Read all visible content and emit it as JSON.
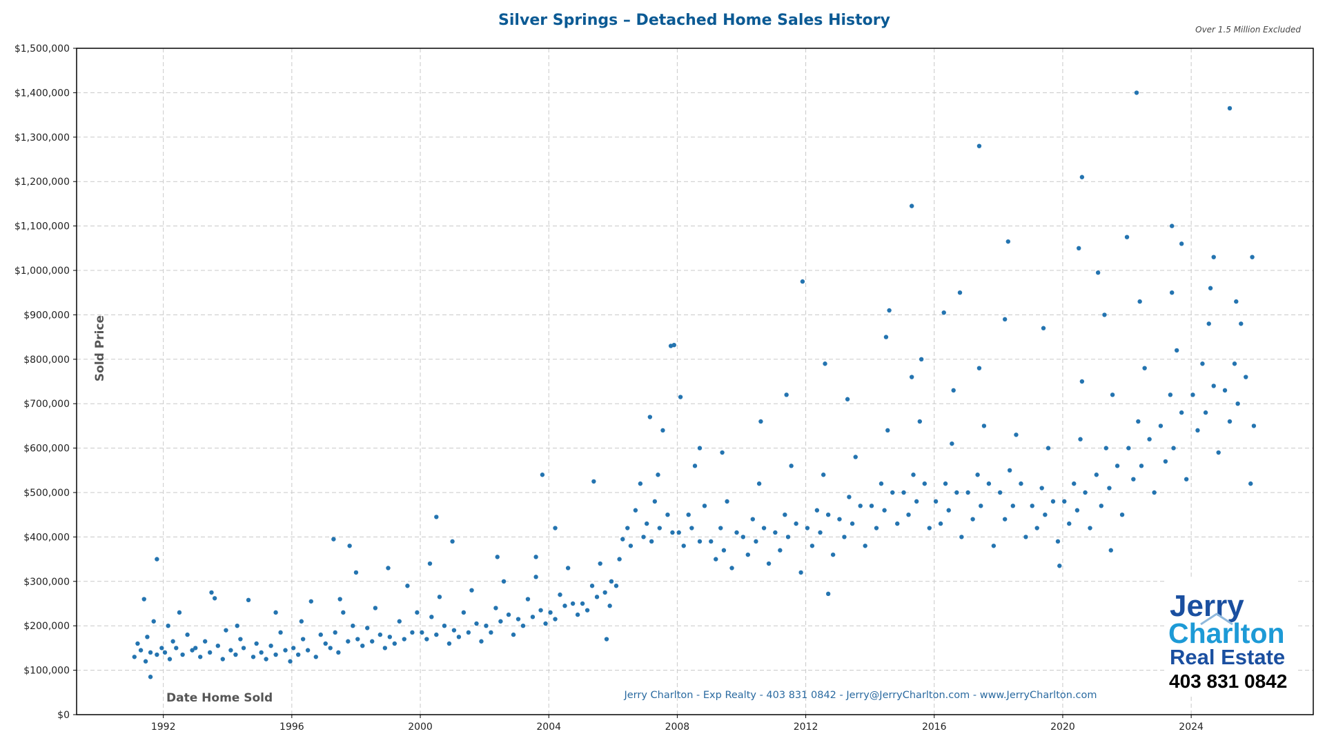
{
  "chart_data": {
    "type": "scatter",
    "title": "Silver Springs – Detached Home Sales History",
    "subtitle": "Over 1.5 Million Excluded",
    "xlabel": "Date Home Sold",
    "ylabel": "Sold Price",
    "footer": "Jerry Charlton - Exp Realty - 403 831 0842 - Jerry@JerryCharlton.com - www.JerryCharlton.com",
    "xlim": [
      1989.3,
      2027.8
    ],
    "ylim": [
      0,
      1500000
    ],
    "x_ticks": [
      "1992",
      "1996",
      "2000",
      "2004",
      "2008",
      "2012",
      "2016",
      "2020",
      "2024"
    ],
    "y_ticks": [
      "$0",
      "$100,000",
      "$200,000",
      "$300,000",
      "$400,000",
      "$500,000",
      "$600,000",
      "$700,000",
      "$800,000",
      "$900,000",
      "$1,000,000",
      "$1,100,000",
      "$1,200,000",
      "$1,300,000",
      "$1,400,000",
      "$1,500,000"
    ],
    "grid": true,
    "point_color": "#2474b0",
    "title_color": "#0b5a94",
    "points": [
      [
        1991.1,
        130000
      ],
      [
        1991.2,
        160000
      ],
      [
        1991.3,
        145000
      ],
      [
        1991.45,
        120000
      ],
      [
        1991.5,
        175000
      ],
      [
        1991.6,
        140000
      ],
      [
        1991.7,
        210000
      ],
      [
        1991.8,
        135000
      ],
      [
        1991.95,
        150000
      ],
      [
        1991.4,
        260000
      ],
      [
        1992.05,
        140000
      ],
      [
        1992.2,
        125000
      ],
      [
        1992.3,
        165000
      ],
      [
        1992.4,
        150000
      ],
      [
        1992.5,
        230000
      ],
      [
        1992.6,
        135000
      ],
      [
        1992.75,
        180000
      ],
      [
        1992.9,
        145000
      ],
      [
        1992.15,
        200000
      ],
      [
        1993.0,
        150000
      ],
      [
        1993.15,
        130000
      ],
      [
        1993.3,
        165000
      ],
      [
        1993.45,
        140000
      ],
      [
        1993.6,
        262000
      ],
      [
        1993.7,
        155000
      ],
      [
        1993.85,
        125000
      ],
      [
        1993.95,
        190000
      ],
      [
        1993.5,
        275000
      ],
      [
        1994.1,
        145000
      ],
      [
        1994.25,
        135000
      ],
      [
        1994.4,
        170000
      ],
      [
        1994.5,
        150000
      ],
      [
        1994.65,
        258000
      ],
      [
        1994.8,
        130000
      ],
      [
        1994.9,
        160000
      ],
      [
        1994.3,
        200000
      ],
      [
        1995.05,
        140000
      ],
      [
        1995.2,
        125000
      ],
      [
        1995.35,
        155000
      ],
      [
        1995.5,
        135000
      ],
      [
        1995.65,
        185000
      ],
      [
        1995.8,
        145000
      ],
      [
        1995.95,
        120000
      ],
      [
        1995.5,
        230000
      ],
      [
        1996.05,
        150000
      ],
      [
        1996.2,
        135000
      ],
      [
        1996.35,
        170000
      ],
      [
        1996.5,
        145000
      ],
      [
        1996.6,
        255000
      ],
      [
        1996.75,
        130000
      ],
      [
        1996.9,
        180000
      ],
      [
        1996.3,
        210000
      ],
      [
        1997.05,
        160000
      ],
      [
        1997.2,
        150000
      ],
      [
        1997.35,
        185000
      ],
      [
        1997.45,
        140000
      ],
      [
        1997.6,
        230000
      ],
      [
        1997.75,
        165000
      ],
      [
        1997.9,
        200000
      ],
      [
        1997.5,
        260000
      ],
      [
        1998.05,
        170000
      ],
      [
        1998.2,
        155000
      ],
      [
        1998.35,
        195000
      ],
      [
        1998.5,
        165000
      ],
      [
        1998.6,
        240000
      ],
      [
        1998.75,
        180000
      ],
      [
        1998.9,
        150000
      ],
      [
        1998.0,
        320000
      ],
      [
        1999.05,
        175000
      ],
      [
        1999.2,
        160000
      ],
      [
        1999.35,
        210000
      ],
      [
        1999.5,
        170000
      ],
      [
        1999.6,
        290000
      ],
      [
        1999.75,
        185000
      ],
      [
        1999.9,
        230000
      ],
      [
        1999.0,
        330000
      ],
      [
        2000.05,
        185000
      ],
      [
        2000.2,
        170000
      ],
      [
        2000.35,
        220000
      ],
      [
        2000.5,
        180000
      ],
      [
        2000.6,
        265000
      ],
      [
        2000.75,
        200000
      ],
      [
        2000.9,
        160000
      ],
      [
        2000.3,
        340000
      ],
      [
        2001.05,
        190000
      ],
      [
        2001.2,
        175000
      ],
      [
        2001.35,
        230000
      ],
      [
        2001.5,
        185000
      ],
      [
        2001.6,
        280000
      ],
      [
        2001.75,
        205000
      ],
      [
        2001.9,
        165000
      ],
      [
        2001.0,
        390000
      ],
      [
        2002.05,
        200000
      ],
      [
        2002.2,
        185000
      ],
      [
        2002.35,
        240000
      ],
      [
        2002.5,
        210000
      ],
      [
        2002.6,
        300000
      ],
      [
        2002.75,
        225000
      ],
      [
        2002.9,
        180000
      ],
      [
        2002.4,
        355000
      ],
      [
        2003.05,
        215000
      ],
      [
        2003.2,
        200000
      ],
      [
        2003.35,
        260000
      ],
      [
        2003.5,
        220000
      ],
      [
        2003.6,
        310000
      ],
      [
        2003.75,
        235000
      ],
      [
        2003.9,
        205000
      ],
      [
        2003.6,
        355000
      ],
      [
        2004.05,
        230000
      ],
      [
        2004.2,
        215000
      ],
      [
        2004.35,
        270000
      ],
      [
        2004.5,
        245000
      ],
      [
        2004.6,
        330000
      ],
      [
        2004.75,
        250000
      ],
      [
        2004.9,
        225000
      ],
      [
        2004.2,
        420000
      ],
      [
        2005.05,
        250000
      ],
      [
        2005.2,
        235000
      ],
      [
        2005.35,
        290000
      ],
      [
        2005.5,
        265000
      ],
      [
        2005.6,
        340000
      ],
      [
        2005.75,
        275000
      ],
      [
        2005.9,
        245000
      ],
      [
        2005.8,
        170000
      ],
      [
        2005.95,
        300000
      ],
      [
        2006.1,
        290000
      ],
      [
        2006.2,
        350000
      ],
      [
        2006.3,
        395000
      ],
      [
        2006.45,
        420000
      ],
      [
        2006.55,
        380000
      ],
      [
        2006.7,
        460000
      ],
      [
        2006.85,
        520000
      ],
      [
        2006.95,
        400000
      ],
      [
        2007.05,
        430000
      ],
      [
        2007.2,
        390000
      ],
      [
        2007.3,
        480000
      ],
      [
        2007.45,
        420000
      ],
      [
        2007.55,
        640000
      ],
      [
        2007.7,
        450000
      ],
      [
        2007.85,
        410000
      ],
      [
        2007.4,
        540000
      ],
      [
        2007.15,
        670000
      ],
      [
        2008.05,
        410000
      ],
      [
        2008.2,
        380000
      ],
      [
        2008.35,
        450000
      ],
      [
        2008.45,
        420000
      ],
      [
        2008.55,
        560000
      ],
      [
        2008.7,
        390000
      ],
      [
        2008.85,
        470000
      ],
      [
        2008.1,
        715000
      ],
      [
        2008.7,
        600000
      ],
      [
        2009.05,
        390000
      ],
      [
        2009.2,
        350000
      ],
      [
        2009.35,
        420000
      ],
      [
        2009.45,
        370000
      ],
      [
        2009.55,
        480000
      ],
      [
        2009.7,
        330000
      ],
      [
        2009.85,
        410000
      ],
      [
        2009.4,
        590000
      ],
      [
        2010.05,
        400000
      ],
      [
        2010.2,
        360000
      ],
      [
        2010.35,
        440000
      ],
      [
        2010.45,
        390000
      ],
      [
        2010.55,
        520000
      ],
      [
        2010.7,
        420000
      ],
      [
        2010.85,
        340000
      ],
      [
        2010.6,
        660000
      ],
      [
        2011.05,
        410000
      ],
      [
        2011.2,
        370000
      ],
      [
        2011.35,
        450000
      ],
      [
        2011.45,
        400000
      ],
      [
        2011.55,
        560000
      ],
      [
        2011.7,
        430000
      ],
      [
        2011.85,
        320000
      ],
      [
        2011.4,
        720000
      ],
      [
        2012.05,
        420000
      ],
      [
        2012.2,
        380000
      ],
      [
        2012.35,
        460000
      ],
      [
        2012.45,
        410000
      ],
      [
        2012.55,
        540000
      ],
      [
        2012.7,
        450000
      ],
      [
        2012.85,
        360000
      ],
      [
        2012.6,
        790000
      ],
      [
        2013.05,
        440000
      ],
      [
        2013.2,
        400000
      ],
      [
        2013.35,
        490000
      ],
      [
        2013.45,
        430000
      ],
      [
        2013.55,
        580000
      ],
      [
        2013.7,
        470000
      ],
      [
        2013.85,
        380000
      ],
      [
        2013.3,
        710000
      ],
      [
        2014.05,
        470000
      ],
      [
        2014.2,
        420000
      ],
      [
        2014.35,
        520000
      ],
      [
        2014.45,
        460000
      ],
      [
        2014.55,
        640000
      ],
      [
        2014.7,
        500000
      ],
      [
        2014.85,
        430000
      ],
      [
        2014.5,
        850000
      ],
      [
        2015.05,
        500000
      ],
      [
        2015.2,
        450000
      ],
      [
        2015.35,
        540000
      ],
      [
        2015.45,
        480000
      ],
      [
        2015.55,
        660000
      ],
      [
        2015.7,
        520000
      ],
      [
        2015.85,
        420000
      ],
      [
        2015.3,
        760000
      ],
      [
        2016.05,
        480000
      ],
      [
        2016.2,
        430000
      ],
      [
        2016.35,
        520000
      ],
      [
        2016.45,
        460000
      ],
      [
        2016.55,
        610000
      ],
      [
        2016.7,
        500000
      ],
      [
        2016.85,
        400000
      ],
      [
        2016.6,
        730000
      ],
      [
        2017.05,
        500000
      ],
      [
        2017.2,
        440000
      ],
      [
        2017.35,
        540000
      ],
      [
        2017.45,
        470000
      ],
      [
        2017.55,
        650000
      ],
      [
        2017.7,
        520000
      ],
      [
        2017.85,
        380000
      ],
      [
        2017.4,
        780000
      ],
      [
        2018.05,
        500000
      ],
      [
        2018.2,
        440000
      ],
      [
        2018.35,
        550000
      ],
      [
        2018.45,
        470000
      ],
      [
        2018.55,
        630000
      ],
      [
        2018.7,
        520000
      ],
      [
        2018.85,
        400000
      ],
      [
        2018.2,
        890000
      ],
      [
        2019.05,
        470000
      ],
      [
        2019.2,
        420000
      ],
      [
        2019.35,
        510000
      ],
      [
        2019.45,
        450000
      ],
      [
        2019.55,
        600000
      ],
      [
        2019.7,
        480000
      ],
      [
        2019.85,
        390000
      ],
      [
        2019.4,
        870000
      ],
      [
        2020.05,
        480000
      ],
      [
        2020.2,
        430000
      ],
      [
        2020.35,
        520000
      ],
      [
        2020.45,
        460000
      ],
      [
        2020.55,
        620000
      ],
      [
        2020.7,
        500000
      ],
      [
        2020.85,
        420000
      ],
      [
        2020.6,
        750000
      ],
      [
        2021.05,
        540000
      ],
      [
        2021.2,
        470000
      ],
      [
        2021.35,
        600000
      ],
      [
        2021.45,
        510000
      ],
      [
        2021.55,
        720000
      ],
      [
        2021.7,
        560000
      ],
      [
        2021.85,
        450000
      ],
      [
        2021.3,
        900000
      ],
      [
        2022.05,
        600000
      ],
      [
        2022.2,
        530000
      ],
      [
        2022.35,
        660000
      ],
      [
        2022.45,
        560000
      ],
      [
        2022.55,
        780000
      ],
      [
        2022.7,
        620000
      ],
      [
        2022.85,
        500000
      ],
      [
        2022.4,
        930000
      ],
      [
        2023.05,
        650000
      ],
      [
        2023.2,
        570000
      ],
      [
        2023.35,
        720000
      ],
      [
        2023.45,
        600000
      ],
      [
        2023.55,
        820000
      ],
      [
        2023.7,
        680000
      ],
      [
        2023.85,
        530000
      ],
      [
        2023.4,
        950000
      ],
      [
        2024.05,
        720000
      ],
      [
        2024.2,
        640000
      ],
      [
        2024.35,
        790000
      ],
      [
        2024.45,
        680000
      ],
      [
        2024.55,
        880000
      ],
      [
        2024.7,
        740000
      ],
      [
        2024.85,
        590000
      ],
      [
        2024.6,
        960000
      ],
      [
        2025.05,
        730000
      ],
      [
        2025.2,
        660000
      ],
      [
        2025.35,
        790000
      ],
      [
        2025.45,
        700000
      ],
      [
        2025.55,
        880000
      ],
      [
        2025.7,
        760000
      ],
      [
        2025.85,
        520000
      ],
      [
        2025.4,
        930000
      ],
      [
        2025.95,
        650000
      ],
      [
        1991.8,
        350000
      ],
      [
        1991.6,
        85000
      ],
      [
        1997.3,
        395000
      ],
      [
        1997.8,
        380000
      ],
      [
        2000.5,
        445000
      ],
      [
        2003.8,
        540000
      ],
      [
        2005.4,
        525000
      ],
      [
        2007.8,
        830000
      ],
      [
        2007.9,
        832000
      ],
      [
        2011.9,
        975000
      ],
      [
        2012.7,
        272000
      ],
      [
        2014.6,
        910000
      ],
      [
        2015.3,
        1145000
      ],
      [
        2017.4,
        1280000
      ],
      [
        2018.3,
        1065000
      ],
      [
        2020.6,
        1210000
      ],
      [
        2020.5,
        1050000
      ],
      [
        2022.3,
        1400000
      ],
      [
        2021.1,
        995000
      ],
      [
        2023.4,
        1100000
      ],
      [
        2023.7,
        1060000
      ],
      [
        2022.0,
        1075000
      ],
      [
        2024.7,
        1030000
      ],
      [
        2025.2,
        1365000
      ],
      [
        2025.9,
        1030000
      ],
      [
        2019.9,
        335000
      ],
      [
        2021.5,
        370000
      ],
      [
        2016.8,
        950000
      ],
      [
        2016.3,
        905000
      ],
      [
        2015.6,
        800000
      ]
    ]
  },
  "logo": {
    "line1": "Jerry",
    "line2": "Charlton",
    "line3": "Real Estate",
    "phone": "403 831 0842",
    "color_dark": "#1a4fa0",
    "color_light": "#1d9ad6"
  }
}
